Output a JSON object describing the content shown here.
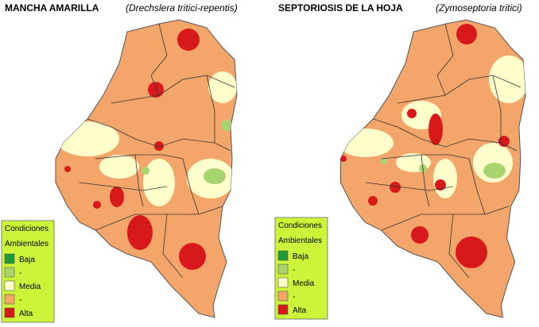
{
  "maps": [
    {
      "title": "MANCHA AMARILLA",
      "subtitle": "(Drechslera tritici-repentis)",
      "legend": {
        "title": "Condiciones",
        "subtitle": "Ambientales",
        "items": [
          {
            "label": "Baja",
            "color": "#1f9a3a"
          },
          {
            "label": "-",
            "color": "#a8d46f"
          },
          {
            "label": "Media",
            "color": "#ffffcc"
          },
          {
            "label": "-",
            "color": "#f4a66a"
          },
          {
            "label": "Alta",
            "color": "#d7191c"
          }
        ]
      }
    },
    {
      "title": "SEPTORIOSIS  DE LA HOJA",
      "subtitle": "(Zymoseptoria tritici)",
      "legend": {
        "title": "Condiciones",
        "subtitle": "Ambientales",
        "items": [
          {
            "label": "Baja",
            "color": "#1f9a3a"
          },
          {
            "label": "-",
            "color": "#a8d46f"
          },
          {
            "label": "Media",
            "color": "#ffffcc"
          },
          {
            "label": "-",
            "color": "#f4a66a"
          },
          {
            "label": "Alta",
            "color": "#d7191c"
          }
        ]
      }
    }
  ]
}
